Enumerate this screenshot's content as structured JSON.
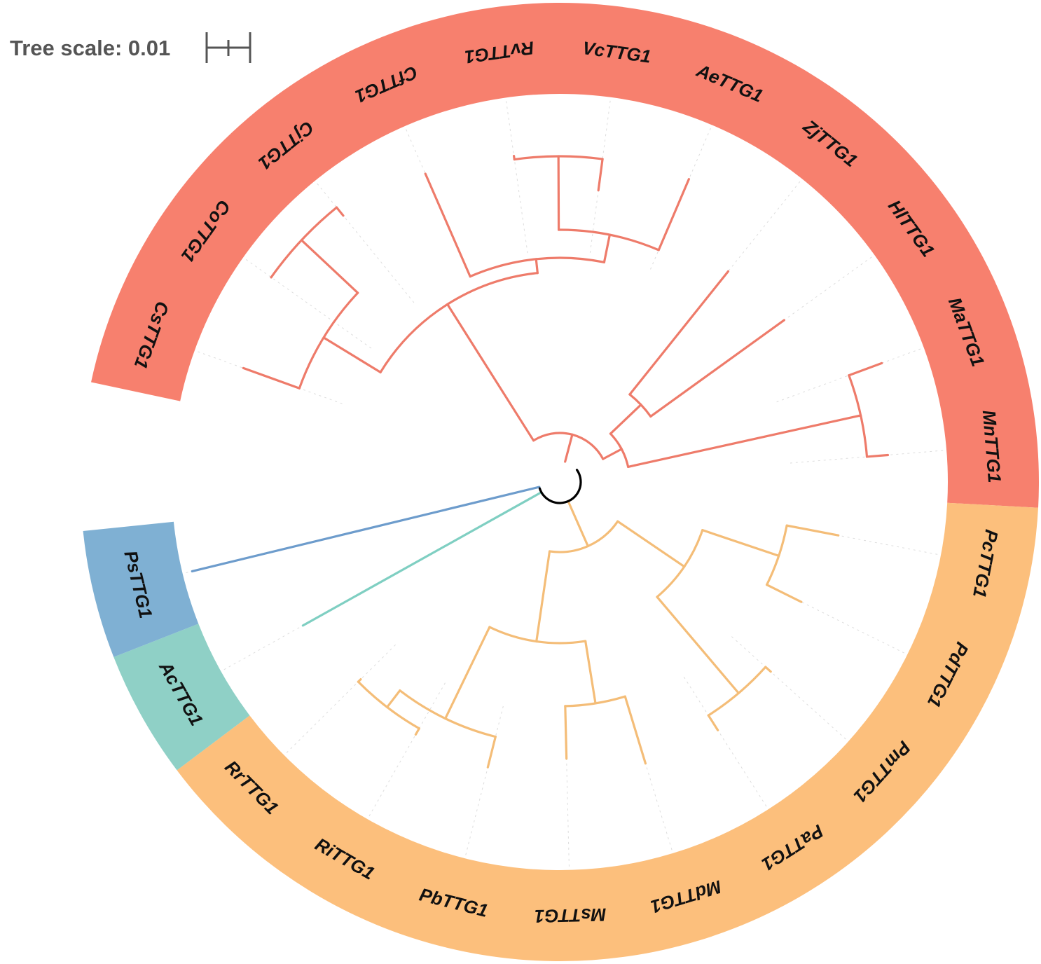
{
  "scale": {
    "label": "Tree scale: 0.01"
  },
  "clade_colors": {
    "rosaceae": "#fcbf7c",
    "actinidia": "#8fd0c6",
    "prunella": "#7fb0d3",
    "red_group": "#f7806e",
    "branch_orange": "#f4bd78",
    "branch_teal": "#7fcfc2",
    "branch_blue": "#6d9ccc",
    "branch_red": "#ee7b6a",
    "root": "#000000"
  },
  "leaves": [
    {
      "label": "CsTTG1",
      "clade": "red_group"
    },
    {
      "label": "CoTTG1",
      "clade": "red_group"
    },
    {
      "label": "CjTTG1",
      "clade": "red_group"
    },
    {
      "label": "CfTTG1",
      "clade": "red_group"
    },
    {
      "label": "RvTTG1",
      "clade": "red_group"
    },
    {
      "label": "VcTTG1",
      "clade": "red_group"
    },
    {
      "label": "AeTTG1",
      "clade": "red_group"
    },
    {
      "label": "ZjTTG1",
      "clade": "red_group"
    },
    {
      "label": "HlTTG1",
      "clade": "red_group"
    },
    {
      "label": "MaTTG1",
      "clade": "red_group"
    },
    {
      "label": "MnTTG1",
      "clade": "red_group"
    },
    {
      "label": "PcTTG1",
      "clade": "rosaceae"
    },
    {
      "label": "PdTTG1",
      "clade": "rosaceae"
    },
    {
      "label": "PmTTG1",
      "clade": "rosaceae"
    },
    {
      "label": "PaTTG1",
      "clade": "rosaceae"
    },
    {
      "label": "MdTTG1",
      "clade": "rosaceae"
    },
    {
      "label": "MsTTG1",
      "clade": "rosaceae"
    },
    {
      "label": "PbTTG1",
      "clade": "rosaceae"
    },
    {
      "label": "RiTTG1",
      "clade": "rosaceae"
    },
    {
      "label": "RrTTG1",
      "clade": "rosaceae"
    },
    {
      "label": "AcTTG1",
      "clade": "actinidia"
    },
    {
      "label": "PsTTG1",
      "clade": "prunella"
    }
  ]
}
